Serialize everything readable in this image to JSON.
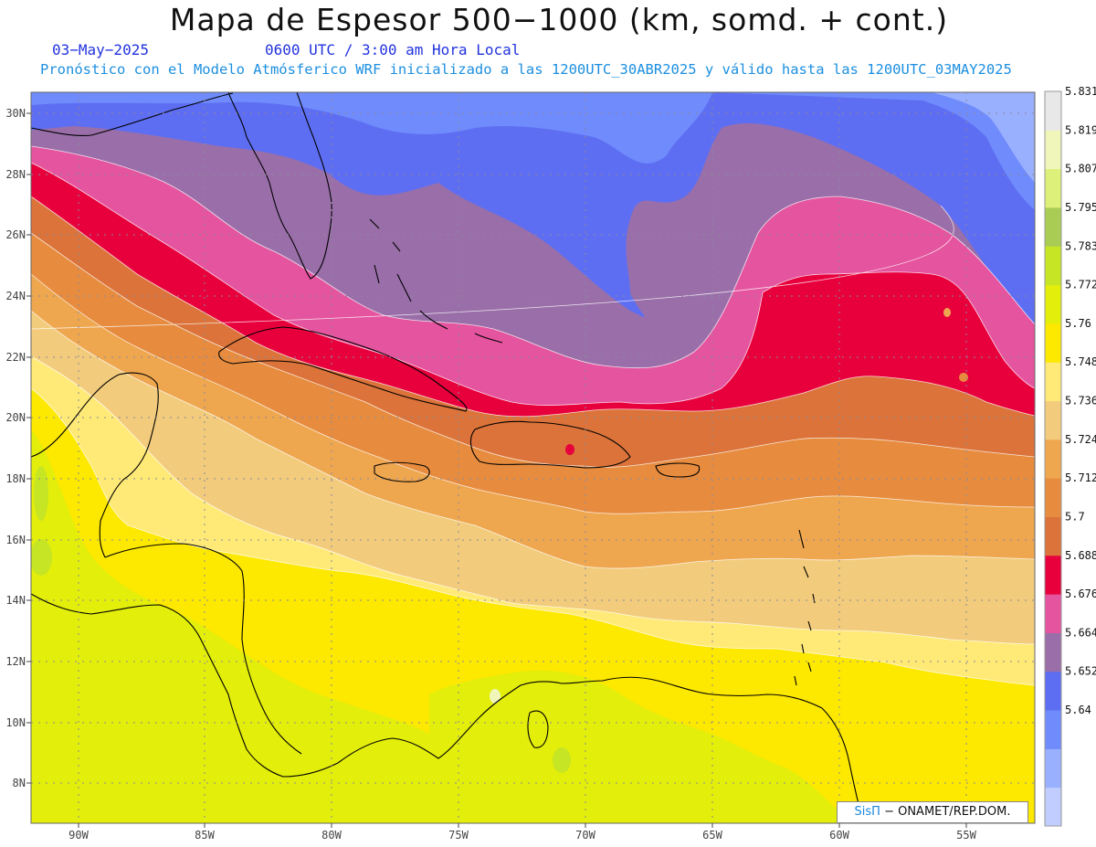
{
  "header": {
    "title": "Mapa de Espesor 500−1000 (km, somd. + cont.)",
    "date": "03−May−2025",
    "time": "0600 UTC / 3:00 am Hora Local",
    "subtitle": "Pronóstico con el Modelo Atmósferico WRF inicializado a las 1200UTC_30ABR2025 y válido hasta las  1200UTC_03MAY2025"
  },
  "map": {
    "lon_labels": [
      "90W",
      "85W",
      "80W",
      "75W",
      "70W",
      "65W",
      "60W",
      "55W"
    ],
    "lat_labels": [
      "30N",
      "28N",
      "26N",
      "24N",
      "22N",
      "20N",
      "18N",
      "16N",
      "14N",
      "12N",
      "10N",
      "8N"
    ],
    "lon_range": [
      -91.8,
      -52.4
    ],
    "lat_range": [
      6.7,
      30.7
    ],
    "land_outline_color": "#000000",
    "grid": "dotted"
  },
  "colorbar": {
    "labels": [
      "5.831",
      "5.819",
      "5.807",
      "5.795",
      "5.783",
      "5.772",
      "5.76",
      "5.748",
      "5.736",
      "5.724",
      "5.712",
      "5.7",
      "5.688",
      "5.676",
      "5.664",
      "5.652",
      "5.64"
    ],
    "colors": [
      "#c1cdfe",
      "#99b0fe",
      "#6f8bfc",
      "#5e6ef2",
      "#9a6fa9",
      "#e5549f",
      "#e8003d",
      "#db733a",
      "#e78c3f",
      "#eea64f",
      "#f2cc7c",
      "#ffe977",
      "#fde800",
      "#e3ee0a",
      "#c6e524",
      "#a9cc55",
      "#ddf07a",
      "#f0f6ba",
      "#e8e8e8"
    ]
  },
  "credit": {
    "brand": "SisΠ",
    "text": "− ONAMET/REP.DOM."
  }
}
